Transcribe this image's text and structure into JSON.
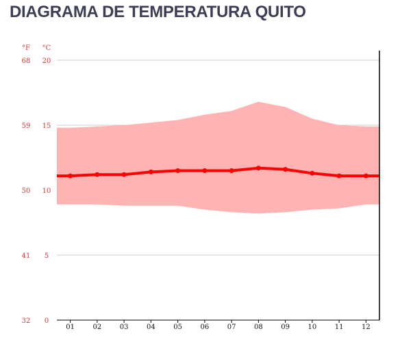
{
  "title": "DIAGRAMA DE TEMPERATURA QUITO",
  "chart_data": {
    "type": "line",
    "title": "DIAGRAMA DE TEMPERATURA QUITO",
    "units": {
      "fahrenheit": "°F",
      "celsius": "°C"
    },
    "categories": [
      "01",
      "02",
      "03",
      "04",
      "05",
      "06",
      "07",
      "08",
      "09",
      "10",
      "11",
      "12"
    ],
    "y_ticks_c": [
      "0",
      "5",
      "10",
      "15",
      "20"
    ],
    "y_ticks_f": [
      "32",
      "41",
      "50",
      "59",
      "68"
    ],
    "ylim": [
      0,
      20
    ],
    "grid": true,
    "series": [
      {
        "role": "max",
        "values": [
          14.8,
          14.9,
          15.0,
          15.2,
          15.4,
          15.8,
          16.1,
          16.8,
          16.4,
          15.5,
          15.0,
          14.9
        ]
      },
      {
        "role": "mean",
        "values": [
          11.1,
          11.2,
          11.2,
          11.4,
          11.5,
          11.5,
          11.5,
          11.7,
          11.6,
          11.3,
          11.1,
          11.1
        ]
      },
      {
        "role": "min",
        "values": [
          8.9,
          8.9,
          8.8,
          8.8,
          8.8,
          8.5,
          8.3,
          8.2,
          8.3,
          8.5,
          8.6,
          8.9
        ]
      }
    ],
    "colors": {
      "range": "#ffb3b3",
      "mean": "#ff0000",
      "tick_text": "#e03030",
      "grid": "#cccccc"
    }
  }
}
